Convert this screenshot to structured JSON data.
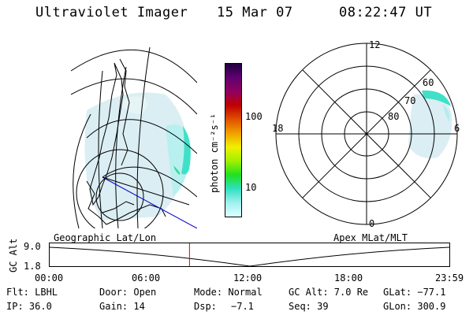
{
  "header": {
    "instrument": "Ultraviolet Imager",
    "date": "15 Mar 07",
    "time": "08:22:47 UT"
  },
  "colorbar": {
    "unit_label": "photon cm⁻²s⁻¹",
    "ticks": [
      "100",
      "10"
    ],
    "colors": [
      "#200040",
      "#600070",
      "#900060",
      "#c00000",
      "#e05000",
      "#f0a000",
      "#f0f000",
      "#a0f000",
      "#20e020",
      "#30e0c0",
      "#a0f0f0",
      "#e0ffff"
    ]
  },
  "polar": {
    "mlt_labels": [
      "12",
      "18",
      "6",
      "0"
    ],
    "lat_labels": [
      "60",
      "70",
      "80"
    ]
  },
  "timeline": {
    "left_label": "Geographic Lat/Lon",
    "right_label": "Apex MLat/MLT",
    "axis_label": "GC Alt",
    "y_ticks": [
      "9.0",
      "1.8"
    ],
    "x_ticks": [
      "00:00",
      "06:00",
      "12:00",
      "18:00",
      "23:59"
    ],
    "marker_time_hours": 8.38
  },
  "info": {
    "row1": [
      "Flt: LBHL",
      "Door: Open",
      "Mode: Normal",
      "GC Alt: 7.0 Re",
      "GLat: −77.1"
    ],
    "row2": [
      "IP: 36.0",
      "Gain: 14",
      "Dsp:",
      "−7.1",
      "Seq: 39",
      "GLon: 300.9"
    ]
  },
  "colors": {
    "aurora_faint": "#d8eef2",
    "aurora_mid": "#b0eef0",
    "aurora_bright": "#40e0c0",
    "aurora_green": "#30d890",
    "marker": "#e00000",
    "track": "#0000cc"
  }
}
